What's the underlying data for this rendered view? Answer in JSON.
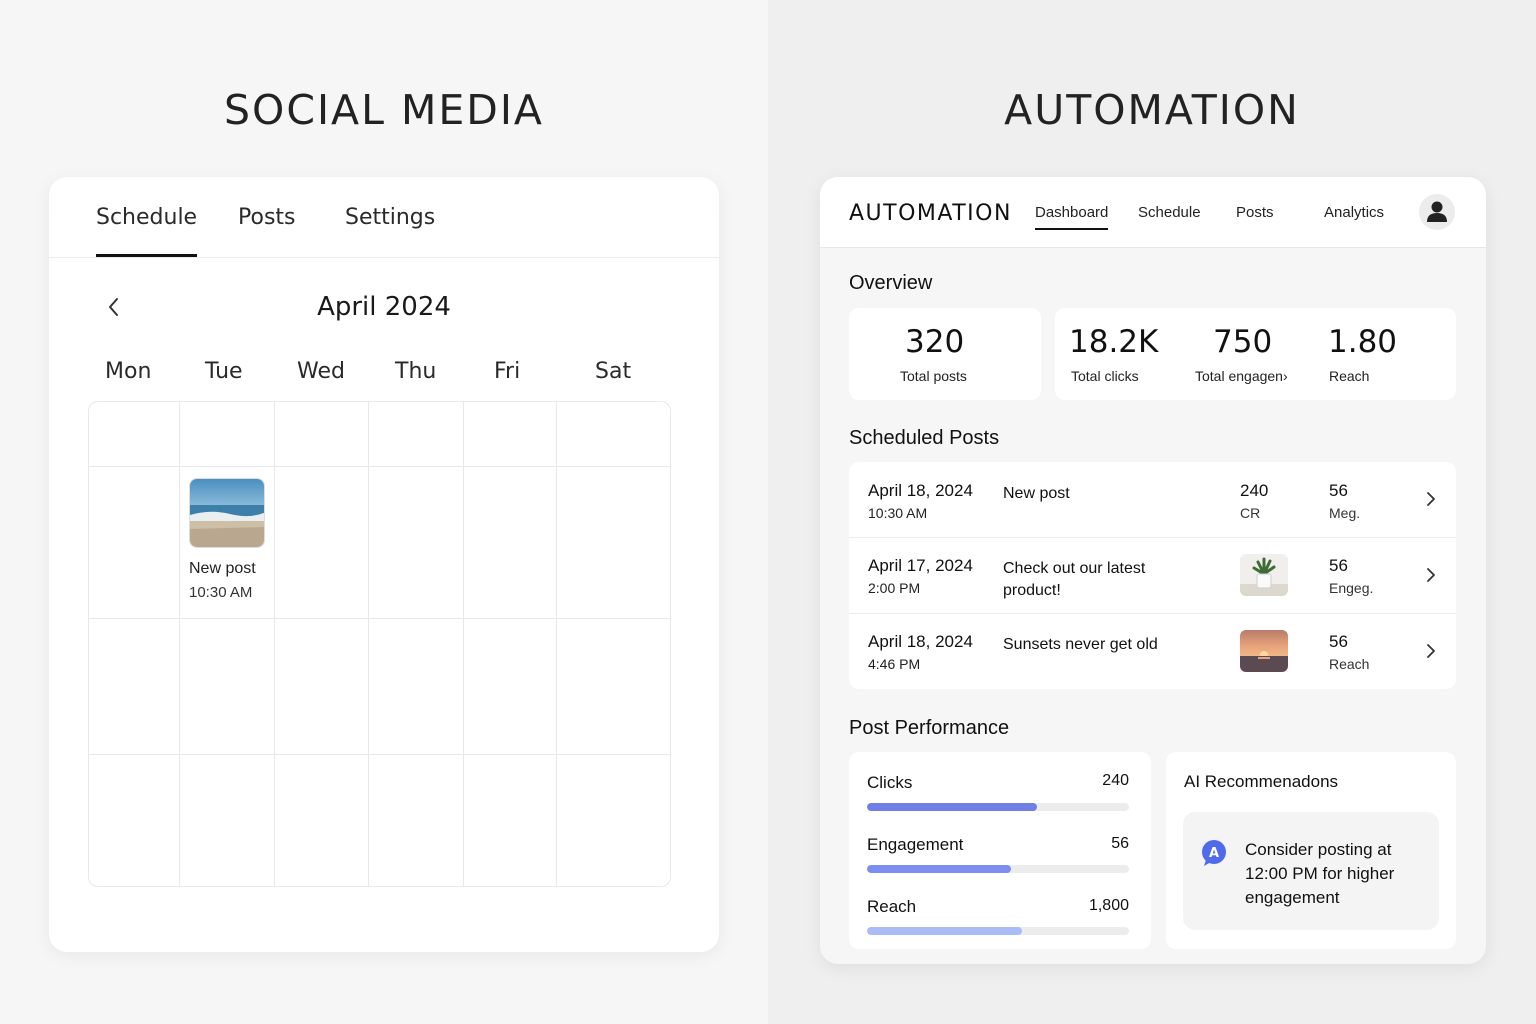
{
  "headings": {
    "left": "SOCIAL MEDIA",
    "right": "AUTOMATION"
  },
  "scheduler": {
    "tabs": [
      {
        "label": "Schedule",
        "active": true
      },
      {
        "label": "Posts",
        "active": false
      },
      {
        "label": "Settings",
        "active": false
      }
    ],
    "month": "April 2024",
    "weekdays": [
      "Mon",
      "Tue",
      "Wed",
      "Thu",
      "Fri",
      "Sat"
    ],
    "event": {
      "title": "New post",
      "time": "10:30 AM",
      "thumbnail": "beach-photo"
    }
  },
  "dashboard": {
    "brand": "AUTOMATION",
    "nav": [
      {
        "label": "Dashboard",
        "active": true
      },
      {
        "label": "Schedule",
        "active": false
      },
      {
        "label": "Posts",
        "active": false
      },
      {
        "label": "Analytics",
        "active": false
      }
    ],
    "avatar_icon": "user-icon",
    "overview": {
      "title": "Overview",
      "metrics": [
        {
          "value": "320",
          "label": "Total posts"
        },
        {
          "value": "18.2K",
          "label": "Total clicks"
        },
        {
          "value": "750",
          "label": "Total engagen›"
        },
        {
          "value": "1.80",
          "label": "Reach"
        }
      ]
    },
    "scheduled": {
      "title": "Scheduled Posts",
      "rows": [
        {
          "date": "April 18, 2024",
          "time": "10:30 AM",
          "caption": "New post",
          "stat1_value": "240",
          "stat1_label": "CR",
          "stat2_value": "56",
          "stat2_label": "Meg."
        },
        {
          "date": "April 17, 2024",
          "time": "2:00 PM",
          "caption": "Check out our latest product!",
          "thumbnail": "plant-photo",
          "stat2_value": "56",
          "stat2_label": "Engeg."
        },
        {
          "date": "April 18, 2024",
          "time": "4:46 PM",
          "caption": "Sunsets never get old",
          "thumbnail": "sunset-photo",
          "stat2_value": "56",
          "stat2_label": "Reach"
        }
      ]
    },
    "performance": {
      "title": "Post Performance",
      "items": [
        {
          "label": "Clicks",
          "value": "240",
          "fill": 0.65,
          "color": "#6f7fe6"
        },
        {
          "label": "Engagement",
          "value": "56",
          "fill": 0.55,
          "color": "#7c8ef0"
        },
        {
          "label": "Reach",
          "value": "1,800",
          "fill": 0.59,
          "color": "#a9bcf7"
        }
      ]
    },
    "ai": {
      "title": "AI Recommenadons",
      "badge": "A",
      "text": "Consider posting at 12:00 PM for higher engagement",
      "badge_color": "#4f6bea"
    }
  }
}
